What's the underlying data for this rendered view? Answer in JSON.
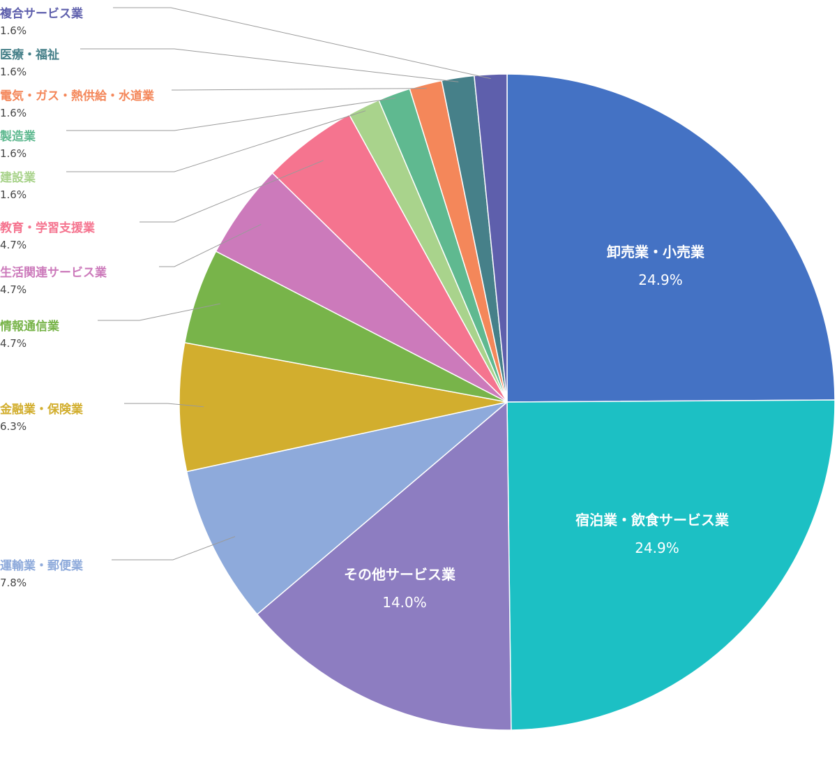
{
  "chart_data": {
    "type": "pie",
    "title": "",
    "slices": [
      {
        "label": "卸売業・小売業",
        "value": 24.9,
        "display": "24.9%",
        "color": "#4472c4"
      },
      {
        "label": "宿泊業・飲食サービス業",
        "value": 24.9,
        "display": "24.9%",
        "color": "#1cc0c4"
      },
      {
        "label": "その他サービス業",
        "value": 14.0,
        "display": "14.0%",
        "color": "#8d7dc1"
      },
      {
        "label": "運輸業・郵便業",
        "value": 7.8,
        "display": "7.8%",
        "color": "#8eaadb"
      },
      {
        "label": "金融業・保険業",
        "value": 6.3,
        "display": "6.3%",
        "color": "#d2ae2e"
      },
      {
        "label": "情報通信業",
        "value": 4.7,
        "display": "4.7%",
        "color": "#78b44a"
      },
      {
        "label": "生活関連サービス業",
        "value": 4.7,
        "display": "4.7%",
        "color": "#cc7abb"
      },
      {
        "label": "教育・学習支援業",
        "value": 4.7,
        "display": "4.7%",
        "color": "#f5748f"
      },
      {
        "label": "建設業",
        "value": 1.6,
        "display": "1.6%",
        "color": "#a9d38c"
      },
      {
        "label": "製造業",
        "value": 1.6,
        "display": "1.6%",
        "color": "#5fb990"
      },
      {
        "label": "電気・ガス・熱供給・水道業",
        "value": 1.6,
        "display": "1.6%",
        "color": "#f4875a"
      },
      {
        "label": "医療・福祉",
        "value": 1.6,
        "display": "1.6%",
        "color": "#468089"
      },
      {
        "label": "複合サービス業",
        "value": 1.6,
        "display": "1.6%",
        "color": "#5e5fac"
      }
    ],
    "start_angle": "12 o'clock",
    "direction": "clockwise",
    "legend": "none (labels beside slices)"
  }
}
